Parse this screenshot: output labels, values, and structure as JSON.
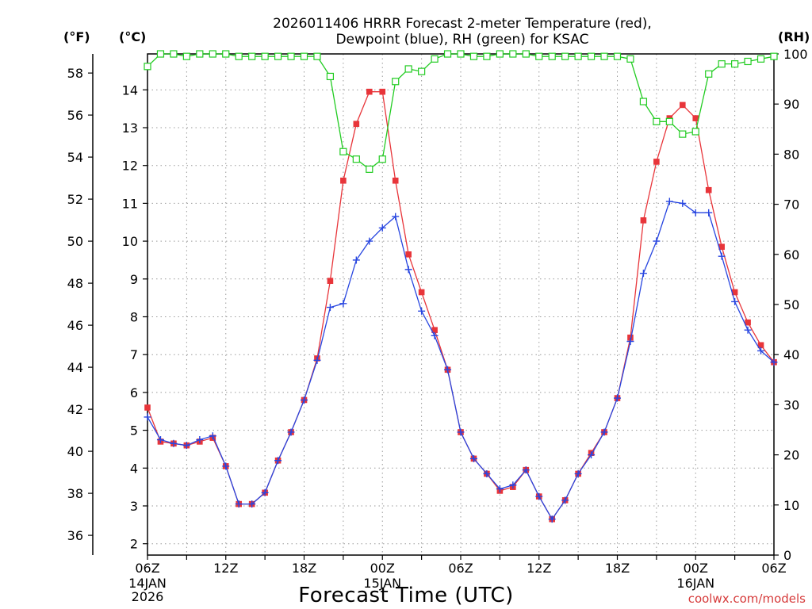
{
  "chart_data": {
    "type": "line",
    "title": "2026011406 HRRR Forecast 2-meter Temperature (red),",
    "subtitle": "Dewpoint (blue), RH (green) for KSAC",
    "xlabel": "Forecast Time (UTC)",
    "credit": "coolwx.com/models",
    "axis_units": {
      "left_outer": "(°F)",
      "left_inner": "(°C)",
      "right": "(RH)"
    },
    "x_hours": {
      "start": 0,
      "end": 48,
      "step": 1
    },
    "x_ticks": [
      {
        "hour": 0,
        "label": "06Z",
        "date": "14JAN",
        "year": "2026"
      },
      {
        "hour": 6,
        "label": "12Z",
        "date": "",
        "year": ""
      },
      {
        "hour": 12,
        "label": "18Z",
        "date": "",
        "year": ""
      },
      {
        "hour": 18,
        "label": "00Z",
        "date": "15JAN",
        "year": ""
      },
      {
        "hour": 24,
        "label": "06Z",
        "date": "",
        "year": ""
      },
      {
        "hour": 30,
        "label": "12Z",
        "date": "",
        "year": ""
      },
      {
        "hour": 36,
        "label": "18Z",
        "date": "",
        "year": ""
      },
      {
        "hour": 42,
        "label": "00Z",
        "date": "16JAN",
        "year": ""
      },
      {
        "hour": 48,
        "label": "06Z",
        "date": "",
        "year": ""
      }
    ],
    "y_celsius": {
      "range": [
        1.7,
        14.95
      ],
      "ticks": [
        2,
        3,
        4,
        5,
        6,
        7,
        8,
        9,
        10,
        11,
        12,
        13,
        14
      ]
    },
    "y_fahrenheit": {
      "ticks": [
        36,
        38,
        40,
        42,
        44,
        46,
        48,
        50,
        52,
        54,
        56,
        58
      ]
    },
    "y_rh": {
      "range": [
        0,
        100
      ],
      "ticks": [
        0,
        10,
        20,
        30,
        40,
        50,
        60,
        70,
        80,
        90,
        100
      ]
    },
    "series": [
      {
        "name": "Temperature",
        "unit": "C",
        "color": "#e8353a",
        "marker": "square",
        "values": [
          5.6,
          4.7,
          4.65,
          4.6,
          4.7,
          4.8,
          4.05,
          3.05,
          3.05,
          3.35,
          4.2,
          4.95,
          5.8,
          6.9,
          8.95,
          11.6,
          13.1,
          13.95,
          13.95,
          11.6,
          9.65,
          8.65,
          7.65,
          6.6,
          4.95,
          4.25,
          3.85,
          3.4,
          3.5,
          3.95,
          3.25,
          2.65,
          3.15,
          3.85,
          4.4,
          4.95,
          5.85,
          7.45,
          10.55,
          12.1,
          13.25,
          13.6,
          13.25,
          11.35,
          9.85,
          8.65,
          7.85,
          7.25,
          6.8
        ]
      },
      {
        "name": "Dewpoint",
        "unit": "C",
        "color": "#2846e0",
        "marker": "plus",
        "values": [
          5.35,
          4.75,
          4.65,
          4.6,
          4.75,
          4.85,
          4.05,
          3.05,
          3.05,
          3.35,
          4.2,
          4.95,
          5.8,
          6.85,
          8.25,
          8.35,
          9.5,
          10.0,
          10.35,
          10.65,
          9.25,
          8.15,
          7.5,
          6.6,
          4.95,
          4.25,
          3.85,
          3.45,
          3.55,
          3.95,
          3.25,
          2.65,
          3.15,
          3.85,
          4.35,
          4.95,
          5.85,
          7.35,
          9.15,
          10.0,
          11.05,
          11.0,
          10.75,
          10.75,
          9.6,
          8.4,
          7.65,
          7.1,
          6.8
        ]
      },
      {
        "name": "RH",
        "unit": "%",
        "color": "#22cc22",
        "marker": "open-square",
        "values": [
          97.5,
          100,
          100,
          99.5,
          100,
          100,
          100,
          99.5,
          99.5,
          99.5,
          99.5,
          99.5,
          99.5,
          99.5,
          95.5,
          80.5,
          79,
          77,
          79,
          94.5,
          97,
          96.5,
          99,
          100,
          100,
          99.5,
          99.5,
          100,
          100,
          100,
          99.5,
          99.5,
          99.5,
          99.5,
          99.5,
          99.5,
          99.5,
          99,
          90.5,
          86.5,
          86.5,
          84,
          84.5,
          96,
          98,
          98,
          98.5,
          99,
          99.5
        ]
      }
    ]
  }
}
